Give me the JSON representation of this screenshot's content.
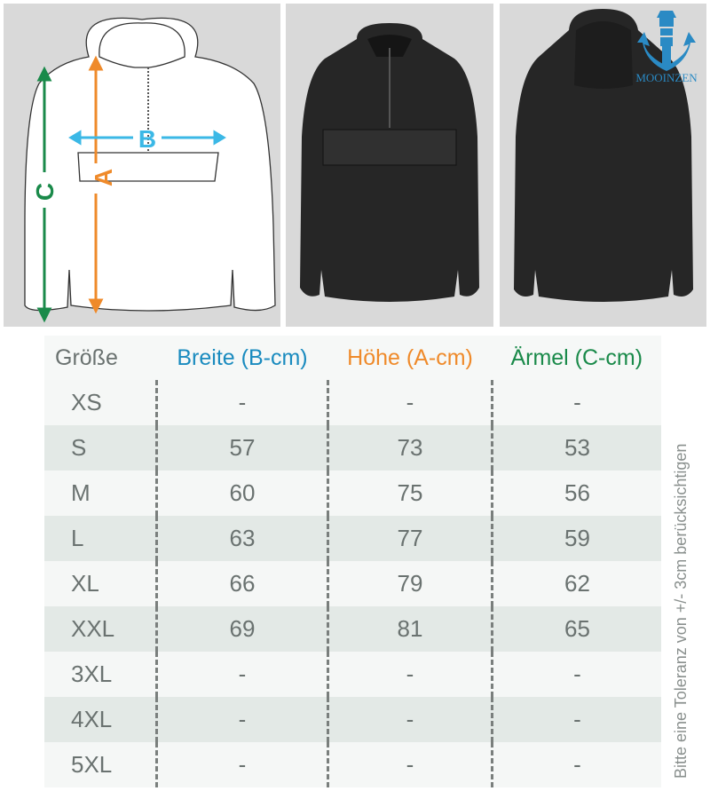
{
  "diagram": {
    "label_a": "A",
    "label_b": "B",
    "label_c": "C"
  },
  "logo": {
    "text": "MOOINZEN"
  },
  "colors": {
    "breite": "#1a8bbf",
    "hoehe": "#ef8a2a",
    "aermel": "#1a8a4a",
    "text": "#6a7270"
  },
  "table": {
    "headers": [
      "Größe",
      "Breite (B-cm)",
      "Höhe (A-cm)",
      "Ärmel (C-cm)"
    ],
    "rows": [
      [
        "XS",
        "-",
        "-",
        "-"
      ],
      [
        "S",
        "57",
        "73",
        "53"
      ],
      [
        "M",
        "60",
        "75",
        "56"
      ],
      [
        "L",
        "63",
        "77",
        "59"
      ],
      [
        "XL",
        "66",
        "79",
        "62"
      ],
      [
        "XXL",
        "69",
        "81",
        "65"
      ],
      [
        "3XL",
        "-",
        "-",
        "-"
      ],
      [
        "4XL",
        "-",
        "-",
        "-"
      ],
      [
        "5XL",
        "-",
        "-",
        "-"
      ]
    ]
  },
  "note": "Bitte eine Toleranz von +/- 3cm berücksichtigen"
}
